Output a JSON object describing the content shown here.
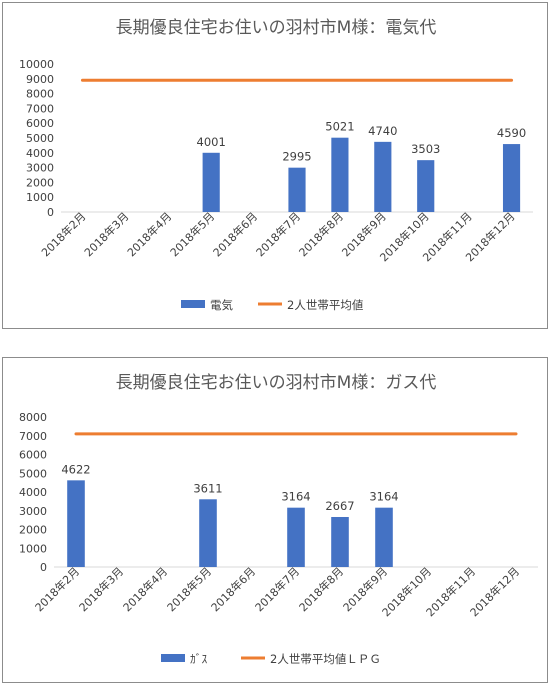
{
  "charts": [
    {
      "type": "bar",
      "title": "長期優良住宅お住いの羽村市M様：電気代",
      "categories": [
        "2018年2月",
        "2018年3月",
        "2018年4月",
        "2018年5月",
        "2018年6月",
        "2018年7月",
        "2018年8月",
        "2018年9月",
        "2018年10月",
        "2018年11月",
        "2018年12月"
      ],
      "y_ticks": [
        "0",
        "1000",
        "2000",
        "3000",
        "4000",
        "5000",
        "6000",
        "7000",
        "8000",
        "9000",
        "10000"
      ],
      "ylim": [
        0,
        10000
      ],
      "series": [
        {
          "name": "電気",
          "kind": "bar",
          "color": "#4472c4",
          "values": [
            null,
            null,
            null,
            4001,
            null,
            2995,
            5021,
            4740,
            3503,
            null,
            4590
          ],
          "labels": [
            "",
            "",
            "",
            "4001",
            "",
            "2995",
            "5021",
            "4740",
            "3503",
            "",
            "4590"
          ]
        },
        {
          "name": "2人世帯平均値",
          "kind": "line",
          "color": "#ed7d31",
          "value": 8900
        }
      ],
      "legend_position": "bottom",
      "grid": false
    },
    {
      "type": "bar",
      "title": "長期優良住宅お住いの羽村市M様：ガス代",
      "categories": [
        "2018年2月",
        "2018年3月",
        "2018年4月",
        "2018年5月",
        "2018年6月",
        "2018年7月",
        "2018年8月",
        "2018年9月",
        "2018年10月",
        "2018年11月",
        "2018年12月"
      ],
      "y_ticks": [
        "0",
        "1000",
        "2000",
        "3000",
        "4000",
        "5000",
        "6000",
        "7000",
        "8000"
      ],
      "ylim": [
        0,
        8000
      ],
      "series": [
        {
          "name": "ｶﾞｽ",
          "kind": "bar",
          "color": "#4472c4",
          "values": [
            4622,
            null,
            null,
            3611,
            null,
            3164,
            2667,
            3164,
            null,
            null,
            null
          ],
          "labels": [
            "4622",
            "",
            "",
            "3611",
            "",
            "3164",
            "2667",
            "3164",
            "",
            "",
            ""
          ]
        },
        {
          "name": "2人世帯平均値ＬＰＧ",
          "kind": "line",
          "color": "#ed7d31",
          "value": 7100
        }
      ],
      "legend_position": "bottom",
      "grid": false
    }
  ]
}
